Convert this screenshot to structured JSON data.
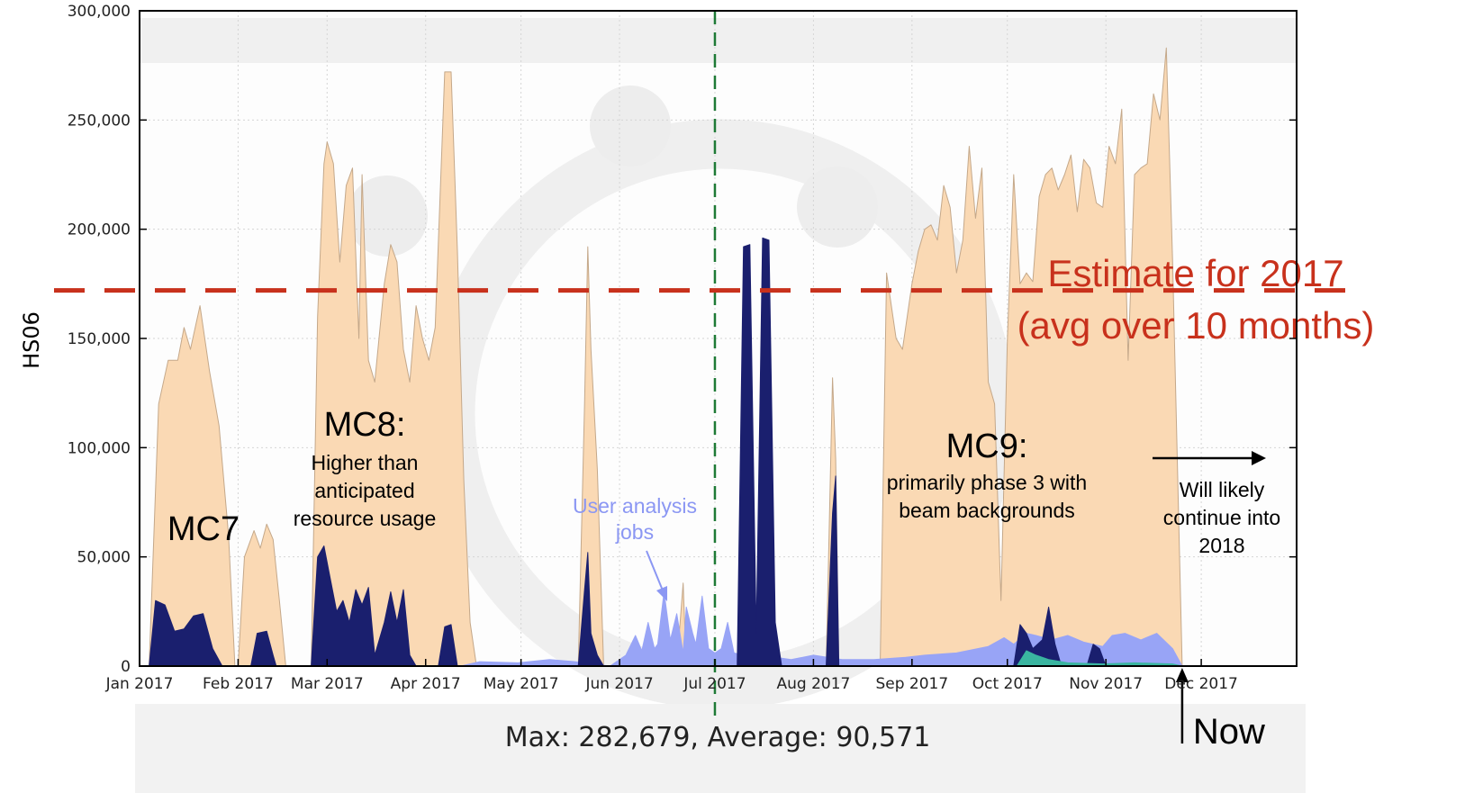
{
  "chart_data": {
    "type": "area",
    "ylabel": "HS06",
    "ylim": [
      0,
      300000
    ],
    "yticks": [
      "0",
      "50,000",
      "100,000",
      "150,000",
      "200,000",
      "250,000",
      "300,000"
    ],
    "ytick_values": [
      0,
      50000,
      100000,
      150000,
      200000,
      250000,
      300000
    ],
    "xlim": [
      "2017-01-01",
      "2017-12-31"
    ],
    "xticks": [
      {
        "date": "2017-01-01",
        "label": "Jan 2017"
      },
      {
        "date": "2017-02-01",
        "label": "Feb 2017"
      },
      {
        "date": "2017-03-01",
        "label": "Mar 2017"
      },
      {
        "date": "2017-04-01",
        "label": "Apr 2017"
      },
      {
        "date": "2017-05-01",
        "label": "May 2017"
      },
      {
        "date": "2017-06-01",
        "label": "Jun 2017"
      },
      {
        "date": "2017-07-01",
        "label": "Jul 2017"
      },
      {
        "date": "2017-08-01",
        "label": "Aug 2017"
      },
      {
        "date": "2017-09-01",
        "label": "Sep 2017"
      },
      {
        "date": "2017-10-01",
        "label": "Oct 2017"
      },
      {
        "date": "2017-11-01",
        "label": "Nov 2017"
      },
      {
        "date": "2017-12-01",
        "label": "Dec 2017"
      }
    ],
    "grid": true,
    "summary": "Max: 282,679, Average: 90,571",
    "colors": {
      "production": "#fad9b4",
      "production_line": "#c4a88a",
      "dark": "#1a1f6e",
      "user": "#98a4f6",
      "teal": "#3ab5a0",
      "estimate": "#c8311c",
      "july_line": "#1e7a36"
    },
    "series": [
      {
        "color_key": "production",
        "points": [
          [
            "2017-01-04",
            0
          ],
          [
            "2017-01-07",
            120000
          ],
          [
            "2017-01-10",
            140000
          ],
          [
            "2017-01-13",
            140000
          ],
          [
            "2017-01-15",
            155000
          ],
          [
            "2017-01-17",
            145000
          ],
          [
            "2017-01-20",
            165000
          ],
          [
            "2017-01-23",
            135000
          ],
          [
            "2017-01-26",
            110000
          ],
          [
            "2017-01-29",
            60000
          ],
          [
            "2017-01-31",
            0
          ],
          [
            "2017-02-01",
            0
          ],
          [
            "2017-02-03",
            50000
          ],
          [
            "2017-02-06",
            62000
          ],
          [
            "2017-02-08",
            54000
          ],
          [
            "2017-02-10",
            65000
          ],
          [
            "2017-02-12",
            58000
          ],
          [
            "2017-02-14",
            30000
          ],
          [
            "2017-02-16",
            0
          ],
          [
            "2017-02-24",
            0
          ],
          [
            "2017-02-26",
            160000
          ],
          [
            "2017-02-28",
            230000
          ],
          [
            "2017-03-01",
            240000
          ],
          [
            "2017-03-03",
            230000
          ],
          [
            "2017-03-05",
            185000
          ],
          [
            "2017-03-07",
            220000
          ],
          [
            "2017-03-09",
            228000
          ],
          [
            "2017-03-11",
            150000
          ],
          [
            "2017-03-12",
            225000
          ],
          [
            "2017-03-14",
            140000
          ],
          [
            "2017-03-16",
            130000
          ],
          [
            "2017-03-19",
            175000
          ],
          [
            "2017-03-21",
            193000
          ],
          [
            "2017-03-23",
            185000
          ],
          [
            "2017-03-25",
            145000
          ],
          [
            "2017-03-27",
            130000
          ],
          [
            "2017-03-29",
            165000
          ],
          [
            "2017-03-31",
            150000
          ],
          [
            "2017-04-02",
            140000
          ],
          [
            "2017-04-04",
            155000
          ],
          [
            "2017-04-07",
            272000
          ],
          [
            "2017-04-09",
            272000
          ],
          [
            "2017-04-11",
            190000
          ],
          [
            "2017-04-13",
            85000
          ],
          [
            "2017-04-15",
            20000
          ],
          [
            "2017-04-17",
            0
          ],
          [
            "2017-05-19",
            0
          ],
          [
            "2017-05-21",
            120000
          ],
          [
            "2017-05-22",
            192000
          ],
          [
            "2017-05-23",
            145000
          ],
          [
            "2017-05-25",
            90000
          ],
          [
            "2017-05-27",
            0
          ],
          [
            "2017-06-19",
            0
          ],
          [
            "2017-06-21",
            38000
          ],
          [
            "2017-06-22",
            0
          ],
          [
            "2017-08-05",
            0
          ],
          [
            "2017-08-07",
            132000
          ],
          [
            "2017-08-08",
            95000
          ],
          [
            "2017-08-09",
            0
          ],
          [
            "2017-08-22",
            0
          ],
          [
            "2017-08-24",
            180000
          ],
          [
            "2017-08-27",
            150000
          ],
          [
            "2017-08-29",
            145000
          ],
          [
            "2017-09-01",
            175000
          ],
          [
            "2017-09-03",
            190000
          ],
          [
            "2017-09-05",
            200000
          ],
          [
            "2017-09-07",
            202000
          ],
          [
            "2017-09-09",
            195000
          ],
          [
            "2017-09-11",
            220000
          ],
          [
            "2017-09-13",
            210000
          ],
          [
            "2017-09-15",
            180000
          ],
          [
            "2017-09-17",
            195000
          ],
          [
            "2017-09-19",
            238000
          ],
          [
            "2017-09-21",
            205000
          ],
          [
            "2017-09-23",
            228000
          ],
          [
            "2017-09-25",
            130000
          ],
          [
            "2017-09-27",
            120000
          ],
          [
            "2017-09-29",
            30000
          ],
          [
            "2017-10-01",
            150000
          ],
          [
            "2017-10-03",
            225000
          ],
          [
            "2017-10-05",
            175000
          ],
          [
            "2017-10-07",
            180000
          ],
          [
            "2017-10-09",
            176000
          ],
          [
            "2017-10-11",
            215000
          ],
          [
            "2017-10-13",
            225000
          ],
          [
            "2017-10-15",
            228000
          ],
          [
            "2017-10-17",
            218000
          ],
          [
            "2017-10-19",
            225000
          ],
          [
            "2017-10-21",
            234000
          ],
          [
            "2017-10-23",
            208000
          ],
          [
            "2017-10-25",
            232000
          ],
          [
            "2017-10-27",
            228000
          ],
          [
            "2017-10-29",
            212000
          ],
          [
            "2017-10-31",
            210000
          ],
          [
            "2017-11-02",
            238000
          ],
          [
            "2017-11-04",
            230000
          ],
          [
            "2017-11-06",
            255000
          ],
          [
            "2017-11-08",
            140000
          ],
          [
            "2017-11-10",
            225000
          ],
          [
            "2017-11-12",
            228000
          ],
          [
            "2017-11-14",
            230000
          ],
          [
            "2017-11-16",
            262000
          ],
          [
            "2017-11-18",
            250000
          ],
          [
            "2017-11-20",
            283000
          ],
          [
            "2017-11-22",
            185000
          ],
          [
            "2017-11-25",
            0
          ]
        ]
      },
      {
        "color_key": "user",
        "points": [
          [
            "2017-04-12",
            0
          ],
          [
            "2017-04-18",
            2000
          ],
          [
            "2017-04-30",
            1500
          ],
          [
            "2017-05-10",
            3000
          ],
          [
            "2017-05-18",
            2000
          ],
          [
            "2017-05-29",
            0
          ],
          [
            "2017-06-03",
            5000
          ],
          [
            "2017-06-06",
            14000
          ],
          [
            "2017-06-08",
            7000
          ],
          [
            "2017-06-10",
            20000
          ],
          [
            "2017-06-12",
            8000
          ],
          [
            "2017-06-13",
            10000
          ],
          [
            "2017-06-15",
            34000
          ],
          [
            "2017-06-17",
            12000
          ],
          [
            "2017-06-19",
            24000
          ],
          [
            "2017-06-21",
            6000
          ],
          [
            "2017-06-22",
            27000
          ],
          [
            "2017-06-24",
            15000
          ],
          [
            "2017-06-25",
            10000
          ],
          [
            "2017-06-27",
            32000
          ],
          [
            "2017-06-29",
            8000
          ],
          [
            "2017-07-01",
            6000
          ],
          [
            "2017-07-03",
            8000
          ],
          [
            "2017-07-05",
            20000
          ],
          [
            "2017-07-07",
            6000
          ],
          [
            "2017-07-10",
            5000
          ],
          [
            "2017-07-14",
            3000
          ],
          [
            "2017-07-20",
            4000
          ],
          [
            "2017-07-25",
            3000
          ],
          [
            "2017-08-01",
            5000
          ],
          [
            "2017-08-10",
            3000
          ],
          [
            "2017-08-20",
            3000
          ],
          [
            "2017-08-30",
            4000
          ],
          [
            "2017-09-05",
            5000
          ],
          [
            "2017-09-15",
            6000
          ],
          [
            "2017-09-25",
            9000
          ],
          [
            "2017-09-30",
            13000
          ],
          [
            "2017-10-03",
            10000
          ],
          [
            "2017-10-07",
            15000
          ],
          [
            "2017-10-10",
            14000
          ],
          [
            "2017-10-15",
            12000
          ],
          [
            "2017-10-20",
            14000
          ],
          [
            "2017-10-25",
            11000
          ],
          [
            "2017-10-31",
            9000
          ],
          [
            "2017-11-03",
            14000
          ],
          [
            "2017-11-07",
            15000
          ],
          [
            "2017-11-12",
            12000
          ],
          [
            "2017-11-17",
            15000
          ],
          [
            "2017-11-22",
            8000
          ],
          [
            "2017-11-25",
            0
          ]
        ]
      },
      {
        "color_key": "dark",
        "points": [
          [
            "2017-01-04",
            0
          ],
          [
            "2017-01-06",
            30000
          ],
          [
            "2017-01-09",
            28000
          ],
          [
            "2017-01-12",
            16000
          ],
          [
            "2017-01-15",
            17000
          ],
          [
            "2017-01-18",
            23000
          ],
          [
            "2017-01-21",
            24000
          ],
          [
            "2017-01-24",
            8000
          ],
          [
            "2017-01-27",
            0
          ],
          [
            "2017-02-05",
            0
          ],
          [
            "2017-02-07",
            15000
          ],
          [
            "2017-02-10",
            16000
          ],
          [
            "2017-02-12",
            5000
          ],
          [
            "2017-02-13",
            0
          ],
          [
            "2017-02-24",
            0
          ],
          [
            "2017-02-26",
            50000
          ],
          [
            "2017-02-28",
            55000
          ],
          [
            "2017-03-02",
            40000
          ],
          [
            "2017-03-04",
            25000
          ],
          [
            "2017-03-06",
            30000
          ],
          [
            "2017-03-08",
            20000
          ],
          [
            "2017-03-10",
            35000
          ],
          [
            "2017-03-12",
            28000
          ],
          [
            "2017-03-14",
            36000
          ],
          [
            "2017-03-16",
            5000
          ],
          [
            "2017-03-19",
            20000
          ],
          [
            "2017-03-21",
            34000
          ],
          [
            "2017-03-23",
            20000
          ],
          [
            "2017-03-25",
            35000
          ],
          [
            "2017-03-27",
            5000
          ],
          [
            "2017-03-29",
            0
          ],
          [
            "2017-04-05",
            0
          ],
          [
            "2017-04-07",
            18000
          ],
          [
            "2017-04-09",
            19000
          ],
          [
            "2017-04-11",
            0
          ],
          [
            "2017-05-19",
            0
          ],
          [
            "2017-05-21",
            35000
          ],
          [
            "2017-05-22",
            52000
          ],
          [
            "2017-05-23",
            15000
          ],
          [
            "2017-05-25",
            5000
          ],
          [
            "2017-05-27",
            0
          ],
          [
            "2017-07-08",
            0
          ],
          [
            "2017-07-10",
            192000
          ],
          [
            "2017-07-12",
            193000
          ],
          [
            "2017-07-14",
            15000
          ],
          [
            "2017-07-16",
            196000
          ],
          [
            "2017-07-18",
            195000
          ],
          [
            "2017-07-20",
            20000
          ],
          [
            "2017-07-22",
            0
          ],
          [
            "2017-08-05",
            0
          ],
          [
            "2017-08-07",
            70000
          ],
          [
            "2017-08-08",
            87000
          ],
          [
            "2017-08-09",
            0
          ],
          [
            "2017-10-03",
            0
          ],
          [
            "2017-10-05",
            19000
          ],
          [
            "2017-10-07",
            15000
          ],
          [
            "2017-10-09",
            8000
          ],
          [
            "2017-10-12",
            12000
          ],
          [
            "2017-10-14",
            27000
          ],
          [
            "2017-10-16",
            10000
          ],
          [
            "2017-10-18",
            0
          ],
          [
            "2017-10-26",
            0
          ],
          [
            "2017-10-28",
            10000
          ],
          [
            "2017-10-30",
            8000
          ],
          [
            "2017-11-01",
            0
          ]
        ]
      },
      {
        "color_key": "teal",
        "points": [
          [
            "2017-10-04",
            0
          ],
          [
            "2017-10-07",
            7000
          ],
          [
            "2017-10-10",
            5000
          ],
          [
            "2017-10-14",
            3000
          ],
          [
            "2017-10-20",
            1500
          ],
          [
            "2017-10-31",
            1000
          ],
          [
            "2017-11-10",
            1500
          ],
          [
            "2017-11-22",
            1000
          ],
          [
            "2017-11-25",
            0
          ]
        ]
      }
    ],
    "annotations": {
      "mc7": "MC7",
      "mc8_title": "MC8:",
      "mc8_lines": [
        "Higher than",
        "anticipated",
        "resource usage"
      ],
      "user_lines": [
        "User analysis",
        "jobs"
      ],
      "mc9_title": "MC9:",
      "mc9_lines": [
        "primarily phase 3 with",
        "beam backgrounds"
      ],
      "continue_lines": [
        "Will likely",
        "continue into",
        "2018"
      ],
      "estimate_lines": [
        "Estimate for 2017",
        "(avg over 10 months)"
      ],
      "estimate_value": 172000,
      "july_line_date": "2017-07-01",
      "now_date": "2017-11-25",
      "now_label": "Now"
    }
  }
}
